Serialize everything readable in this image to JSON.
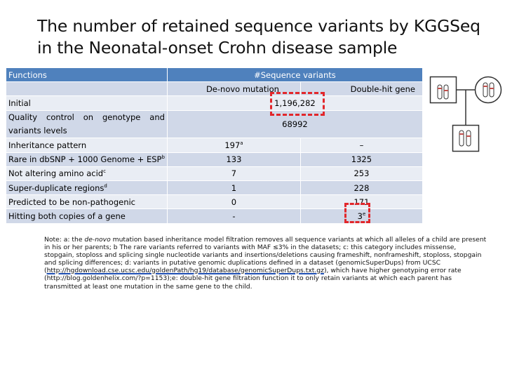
{
  "title": "The number of retained sequence variants by KGGSeq in the Neonatal-onset Crohn disease sample",
  "table": {
    "header": {
      "functions": "Functions",
      "variants": "#Sequence variants"
    },
    "subheader": {
      "denovo": "De-novo mutation",
      "doublehit": "Double-hit gene"
    },
    "merged_rows": [
      {
        "label": "Initial",
        "value": "1,196,282"
      },
      {
        "label": "Quality control on genotype and variants levels",
        "value": "68992"
      }
    ],
    "rows": [
      {
        "label": "Inheritance pattern",
        "sup": "",
        "denovo": "197",
        "denovo_sup": "a",
        "doublehit": "–",
        "doublehit_sup": ""
      },
      {
        "label": "Rare in dbSNP + 1000 Genome + ESP",
        "sup": "b",
        "denovo": "133",
        "denovo_sup": "",
        "doublehit": "1325",
        "doublehit_sup": ""
      },
      {
        "label": "Not altering amino acid",
        "sup": "c",
        "denovo": "7",
        "denovo_sup": "",
        "doublehit": "253",
        "doublehit_sup": ""
      },
      {
        "label": "Super-duplicate regions",
        "sup": "d",
        "denovo": "1",
        "denovo_sup": "",
        "doublehit": "228",
        "doublehit_sup": ""
      },
      {
        "label": "Predicted to be non-pathogenic",
        "sup": "",
        "denovo": "0",
        "denovo_sup": "",
        "doublehit": "171",
        "doublehit_sup": ""
      },
      {
        "label": "Hitting both copies of a gene",
        "sup": "",
        "denovo": "-",
        "denovo_sup": "",
        "doublehit": "3",
        "doublehit_sup": "e"
      }
    ]
  },
  "note": {
    "prefix": "Note: a: the ",
    "italic": "de-novo",
    "part1": " mutation based inheritance model filtration removes all sequence variants at which all alleles of a child are present in his or her parents; b The rare variants referred to variants with MAF ≤3% in the datasets; c: this category includes missense, stopgain, stoploss and splicing single nucleotide variants and insertions/deletions causing frameshift, nonframeshift, stoploss, stopgain and splicing differences; d: variants in putative genomic duplications defined in a dataset (genomicSuperDups) from UCSC (",
    "link": "http://hgdownload.cse.ucsc.edu/goldenPath/hg19/database/genomicSuperDups.txt.gz",
    "part2": "), which have higher genotyping error rate (http://blog.goldenhelix.com/?p=1153);e: double-hit gene filtration function it to only retain variants at which each parent has transmitted at least one mutation in the same gene to the child."
  },
  "colors": {
    "header": "#4f81bd",
    "row_odd": "#d0d8e8",
    "row_even": "#e9edf4",
    "highlight": "#e2272b",
    "allele": "#c0504d"
  }
}
